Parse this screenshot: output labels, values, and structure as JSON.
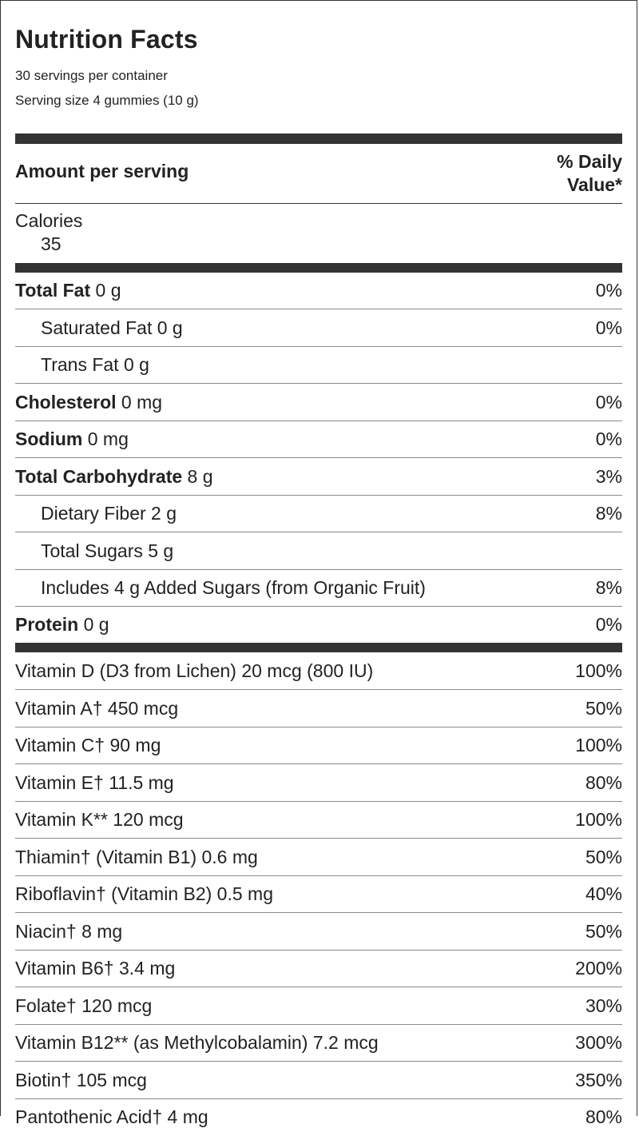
{
  "title": "Nutrition Facts",
  "servings_per_container": "30 servings per container",
  "serving_size": "Serving size 4 gummies (10 g)",
  "amount_header": "Amount per serving",
  "dv_header_line1": "% Daily",
  "dv_header_line2": "Value*",
  "calories": {
    "label": "Calories",
    "value": "35"
  },
  "macros": [
    {
      "name": "Total Fat",
      "amount": " 0 g",
      "dv": "0%"
    },
    {
      "name": "Saturated Fat 0 g",
      "amount": "",
      "dv": "0%"
    },
    {
      "name": "Trans Fat 0 g",
      "amount": "",
      "dv": ""
    },
    {
      "name": "Cholesterol",
      "amount": " 0 mg",
      "dv": "0%"
    },
    {
      "name": "Sodium",
      "amount": " 0 mg",
      "dv": "0%"
    },
    {
      "name": "Total Carbohydrate",
      "amount": " 8 g",
      "dv": "3%"
    },
    {
      "name": "Dietary Fiber 2 g",
      "amount": "",
      "dv": "8%"
    },
    {
      "name": "Total Sugars 5 g",
      "amount": "",
      "dv": ""
    },
    {
      "name": "Includes 4 g Added Sugars (from Organic Fruit)",
      "amount": "",
      "dv": "8%"
    },
    {
      "name": "Protein",
      "amount": " 0 g",
      "dv": "0%"
    }
  ],
  "vitamins": [
    {
      "name": "Vitamin D (D3 from Lichen) 20 mcg (800 IU)",
      "dv": "100%"
    },
    {
      "name": "Vitamin A† 450 mcg",
      "dv": "50%"
    },
    {
      "name": "Vitamin C† 90 mg",
      "dv": "100%"
    },
    {
      "name": "Vitamin E† 11.5 mg",
      "dv": "80%"
    },
    {
      "name": "Vitamin K** 120 mcg",
      "dv": "100%"
    },
    {
      "name": "Thiamin† (Vitamin B1) 0.6 mg",
      "dv": "50%"
    },
    {
      "name": "Riboflavin† (Vitamin B2) 0.5 mg",
      "dv": "40%"
    },
    {
      "name": "Niacin† 8 mg",
      "dv": "50%"
    },
    {
      "name": "Vitamin B6† 3.4 mg",
      "dv": "200%"
    },
    {
      "name": "Folate† 120 mcg",
      "dv": "30%"
    },
    {
      "name": "Vitamin B12** (as Methylcobalamin) 7.2 mcg",
      "dv": "300%"
    },
    {
      "name": "Biotin† 105 mcg",
      "dv": "350%"
    },
    {
      "name": "Pantothenic Acid† 4 mg",
      "dv": "80%"
    }
  ]
}
